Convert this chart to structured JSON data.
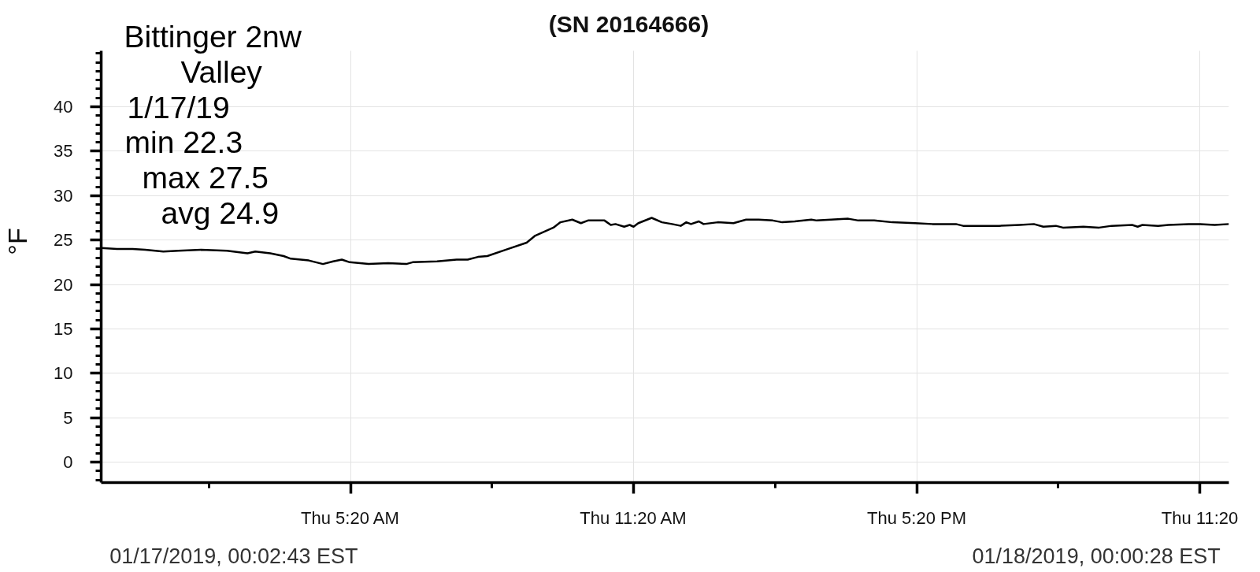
{
  "chart_data": {
    "type": "line",
    "title": "(SN 20164666)",
    "ylabel": "°F",
    "annotations": [
      "Bittinger 2nw",
      "Valley",
      "1/17/19",
      "min 22.3",
      "max 27.5",
      "avg 24.9",
      "01/17/2019, 00:02:43 EST",
      "01/18/2019, 00:00:28 EST"
    ],
    "x": [
      "2019-01-17T00:03",
      "2019-01-17T00:23",
      "2019-01-17T00:43",
      "2019-01-17T00:59",
      "2019-01-17T01:22",
      "2019-01-17T01:41",
      "2019-01-17T02:10",
      "2019-01-17T02:43",
      "2019-01-17T03:09",
      "2019-01-17T03:19",
      "2019-01-17T03:38",
      "2019-01-17T03:55",
      "2019-01-17T04:04",
      "2019-01-17T04:27",
      "2019-01-17T04:45",
      "2019-01-17T04:58",
      "2019-01-17T05:09",
      "2019-01-17T05:19",
      "2019-01-17T05:43",
      "2019-01-17T06:08",
      "2019-01-17T06:31",
      "2019-01-17T06:39",
      "2019-01-17T07:10",
      "2019-01-17T07:35",
      "2019-01-17T07:49",
      "2019-01-17T08:02",
      "2019-01-17T08:14",
      "2019-01-17T08:37",
      "2019-01-17T09:04",
      "2019-01-17T09:15",
      "2019-01-17T09:38",
      "2019-01-17T09:47",
      "2019-01-17T10:02",
      "2019-01-17T10:13",
      "2019-01-17T10:22",
      "2019-01-17T10:43",
      "2019-01-17T10:51",
      "2019-01-17T10:57",
      "2019-01-17T11:08",
      "2019-01-17T11:15",
      "2019-01-17T11:20",
      "2019-01-17T11:26",
      "2019-01-17T11:43",
      "2019-01-17T11:56",
      "2019-01-17T12:09",
      "2019-01-17T12:20",
      "2019-01-17T12:27",
      "2019-01-17T12:33",
      "2019-01-17T12:43",
      "2019-01-17T12:49",
      "2019-01-17T13:07",
      "2019-01-17T13:27",
      "2019-01-17T13:43",
      "2019-01-17T13:59",
      "2019-01-17T14:17",
      "2019-01-17T14:29",
      "2019-01-17T14:45",
      "2019-01-17T15:06",
      "2019-01-17T15:13",
      "2019-01-17T15:31",
      "2019-01-17T15:53",
      "2019-01-17T16:06",
      "2019-01-17T16:26",
      "2019-01-17T16:49",
      "2019-01-17T17:18",
      "2019-01-17T17:40",
      "2019-01-17T18:10",
      "2019-01-17T18:19",
      "2019-01-17T18:39",
      "2019-01-17T19:05",
      "2019-01-17T19:31",
      "2019-01-17T19:49",
      "2019-01-17T20:01",
      "2019-01-17T20:17",
      "2019-01-17T20:26",
      "2019-01-17T20:52",
      "2019-01-17T21:12",
      "2019-01-17T21:28",
      "2019-01-17T21:54",
      "2019-01-17T22:01",
      "2019-01-17T22:07",
      "2019-01-17T22:27",
      "2019-01-17T22:40",
      "2019-01-17T23:06",
      "2019-01-17T23:19",
      "2019-01-17T23:39",
      "2019-01-17T23:57"
    ],
    "series": [
      {
        "color": "#000000",
        "values": [
          24.1,
          24.0,
          24.0,
          23.9,
          23.7,
          23.8,
          23.9,
          23.8,
          23.5,
          23.7,
          23.5,
          23.2,
          22.9,
          22.7,
          22.3,
          22.6,
          22.8,
          22.5,
          22.3,
          22.4,
          22.3,
          22.5,
          22.6,
          22.8,
          22.8,
          23.1,
          23.2,
          23.9,
          24.7,
          25.5,
          26.4,
          27.0,
          27.3,
          26.9,
          27.2,
          27.2,
          26.7,
          26.8,
          26.5,
          26.7,
          26.5,
          26.9,
          27.5,
          27.0,
          26.8,
          26.6,
          27.0,
          26.8,
          27.1,
          26.8,
          27.0,
          26.9,
          27.3,
          27.3,
          27.2,
          27.0,
          27.1,
          27.3,
          27.2,
          27.3,
          27.4,
          27.2,
          27.2,
          27.0,
          26.9,
          26.8,
          26.8,
          26.6,
          26.6,
          26.6,
          26.7,
          26.8,
          26.5,
          26.6,
          26.4,
          26.5,
          26.4,
          26.6,
          26.7,
          26.5,
          26.7,
          26.6,
          26.7,
          26.8,
          26.8,
          26.7,
          26.8
        ]
      }
    ],
    "xlim": [
      "2019-01-17T00:03",
      "2019-01-17T23:57"
    ],
    "ylim": [
      -2.3,
      46.3
    ],
    "xticks": [
      {
        "value": "2019-01-17T02:20",
        "label": null
      },
      {
        "value": "2019-01-17T05:20",
        "label": "Thu 5:20 AM"
      },
      {
        "value": "2019-01-17T08:20",
        "label": null
      },
      {
        "value": "2019-01-17T11:20",
        "label": "Thu 11:20 AM"
      },
      {
        "value": "2019-01-17T14:20",
        "label": null
      },
      {
        "value": "2019-01-17T17:20",
        "label": "Thu 5:20 PM"
      },
      {
        "value": "2019-01-17T20:20",
        "label": null
      },
      {
        "value": "2019-01-17T23:20",
        "label": "Thu 11:20"
      }
    ],
    "yticks": [
      {
        "value": -2,
        "label": null
      },
      {
        "value": -1,
        "label": null
      },
      0,
      {
        "value": 1,
        "label": null
      },
      {
        "value": 2,
        "label": null
      },
      {
        "value": 3,
        "label": null
      },
      {
        "value": 4,
        "label": null
      },
      5,
      {
        "value": 6,
        "label": null
      },
      {
        "value": 7,
        "label": null
      },
      {
        "value": 8,
        "label": null
      },
      {
        "value": 9,
        "label": null
      },
      10,
      {
        "value": 11,
        "label": null
      },
      {
        "value": 12,
        "label": null
      },
      {
        "value": 13,
        "label": null
      },
      {
        "value": 14,
        "label": null
      },
      15,
      {
        "value": 16,
        "label": null
      },
      {
        "value": 17,
        "label": null
      },
      {
        "value": 18,
        "label": null
      },
      {
        "value": 19,
        "label": null
      },
      20,
      {
        "value": 21,
        "label": null
      },
      {
        "value": 22,
        "label": null
      },
      {
        "value": 23,
        "label": null
      },
      {
        "value": 24,
        "label": null
      },
      25,
      {
        "value": 26,
        "label": null
      },
      {
        "value": 27,
        "label": null
      },
      {
        "value": 28,
        "label": null
      },
      {
        "value": 29,
        "label": null
      },
      30,
      {
        "value": 31,
        "label": null
      },
      {
        "value": 32,
        "label": null
      },
      {
        "value": 33,
        "label": null
      },
      {
        "value": 34,
        "label": null
      },
      35,
      {
        "value": 36,
        "label": null
      },
      {
        "value": 37,
        "label": null
      },
      {
        "value": 38,
        "label": null
      },
      {
        "value": 39,
        "label": null
      },
      40,
      {
        "value": 41,
        "label": null
      },
      {
        "value": 42,
        "label": null
      },
      {
        "value": 43,
        "label": null
      },
      {
        "value": 44,
        "label": null
      },
      {
        "value": 45,
        "label": null
      },
      {
        "value": 46,
        "label": null
      }
    ],
    "grid": true
  }
}
